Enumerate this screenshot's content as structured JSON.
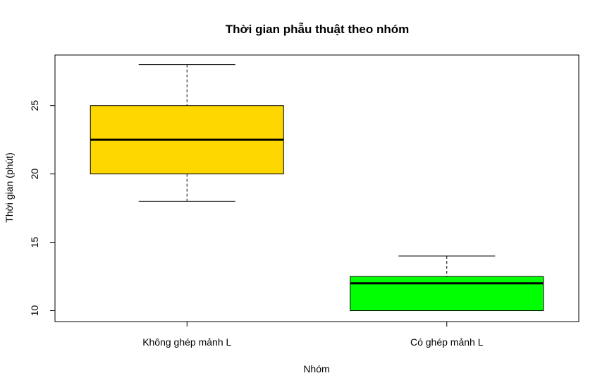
{
  "chart_data": {
    "type": "boxplot",
    "title": "Thời gian phẫu thuật theo nhóm",
    "xlabel": "Nhóm",
    "ylabel": "Thời gian (phút)",
    "ylim": [
      9.2,
      28.7
    ],
    "yticks": [
      10,
      15,
      20,
      25
    ],
    "categories": [
      "Không ghép mảnh L",
      "Có ghép mảnh L"
    ],
    "boxes": [
      {
        "category": "Không ghép mảnh L",
        "min": 18,
        "q1": 20,
        "median": 22.5,
        "q3": 25,
        "max": 28,
        "color": "#FFD700"
      },
      {
        "category": "Có ghép mảnh L",
        "min": 10,
        "q1": 10,
        "median": 12,
        "q3": 12.5,
        "max": 14,
        "color": "#00FF00"
      }
    ],
    "grid": false,
    "legend": "none"
  }
}
